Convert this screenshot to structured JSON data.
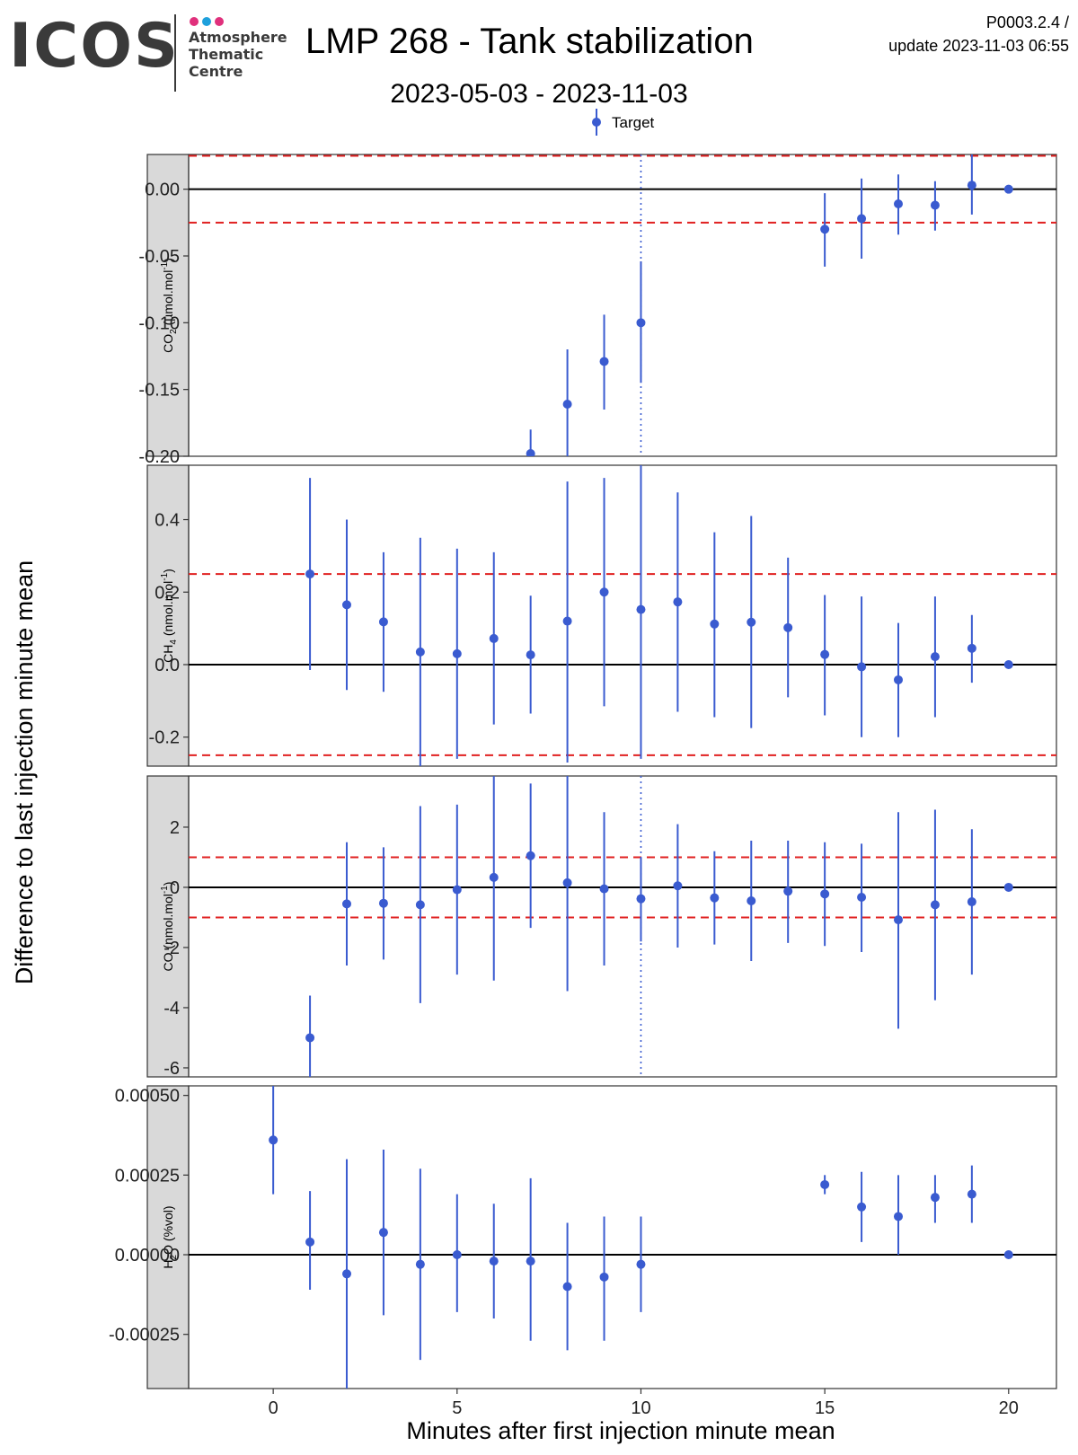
{
  "header": {
    "logo_text": "ICOS",
    "logo_sub": [
      "Atmosphere",
      "Thematic",
      "Centre"
    ],
    "title": "LMP 268 - Tank stabilization",
    "subtitle": "2023-05-03 - 2023-11-03",
    "code": "P0003.2.4 /",
    "update": "update  2023-11-03 06:55"
  },
  "colors": {
    "logo_dots": [
      "#e0307c",
      "#1ea0dc",
      "#e0307c"
    ],
    "point": "#3a5bd0",
    "reference": "#e02020",
    "strip": "#d9d9d9"
  },
  "chart_data": {
    "type": "scatter",
    "legend": {
      "label": "Target",
      "position": "top"
    },
    "xlabel": "Minutes after first injection minute mean",
    "ylabel": "Difference to last injection minute mean",
    "xlim": [
      -2.3,
      21.3
    ],
    "xticks": [
      0,
      5,
      10,
      15,
      20
    ],
    "xtick_labels": [
      "0",
      "5",
      "10",
      "15",
      "20"
    ],
    "vline_x": 10,
    "panels": [
      {
        "id": "co2",
        "strip_main": "CO",
        "strip_sub": "2",
        "strip_unit": " (µmol.mol",
        "strip_sup": "-1",
        "strip_end": ")",
        "ylim": [
          -0.2,
          0.026
        ],
        "yticks": [
          0,
          -0.05,
          -0.1,
          -0.15,
          -0.2
        ],
        "ytick_labels": [
          "0.00",
          "-0.05",
          "-0.10",
          "-0.15",
          "-0.20"
        ],
        "ref": 0.025,
        "vline": true,
        "points": [
          {
            "x": 7,
            "y": -0.198,
            "lo": -0.22,
            "hi": -0.18
          },
          {
            "x": 8,
            "y": -0.161,
            "lo": -0.205,
            "hi": -0.12
          },
          {
            "x": 9,
            "y": -0.129,
            "lo": -0.165,
            "hi": -0.094
          },
          {
            "x": 10,
            "y": -0.1,
            "lo": -0.145,
            "hi": -0.054
          },
          {
            "x": 15,
            "y": -0.03,
            "lo": -0.058,
            "hi": -0.003
          },
          {
            "x": 16,
            "y": -0.022,
            "lo": -0.052,
            "hi": 0.008
          },
          {
            "x": 17,
            "y": -0.011,
            "lo": -0.034,
            "hi": 0.011
          },
          {
            "x": 18,
            "y": -0.012,
            "lo": -0.031,
            "hi": 0.006
          },
          {
            "x": 19,
            "y": 0.003,
            "lo": -0.019,
            "hi": 0.026
          },
          {
            "x": 20,
            "y": 0.0,
            "lo": 0.0,
            "hi": 0.0
          }
        ]
      },
      {
        "id": "ch4",
        "strip_main": "CH",
        "strip_sub": "4",
        "strip_unit": " (nmol.mol",
        "strip_sup": "-1",
        "strip_end": ")",
        "ylim": [
          -0.28,
          0.55
        ],
        "yticks": [
          0.4,
          0.2,
          0,
          -0.2
        ],
        "ytick_labels": [
          "0.4",
          "0.2",
          "0.0",
          "-0.2"
        ],
        "ref": 0.25,
        "vline": false,
        "points": [
          {
            "x": 1,
            "y": 0.25,
            "lo": -0.015,
            "hi": 0.515
          },
          {
            "x": 2,
            "y": 0.165,
            "lo": -0.07,
            "hi": 0.4
          },
          {
            "x": 3,
            "y": 0.118,
            "lo": -0.075,
            "hi": 0.31
          },
          {
            "x": 4,
            "y": 0.035,
            "lo": -0.28,
            "hi": 0.35
          },
          {
            "x": 5,
            "y": 0.03,
            "lo": -0.26,
            "hi": 0.32
          },
          {
            "x": 6,
            "y": 0.072,
            "lo": -0.165,
            "hi": 0.31
          },
          {
            "x": 7,
            "y": 0.027,
            "lo": -0.135,
            "hi": 0.19
          },
          {
            "x": 8,
            "y": 0.12,
            "lo": -0.27,
            "hi": 0.505
          },
          {
            "x": 9,
            "y": 0.2,
            "lo": -0.115,
            "hi": 0.515
          },
          {
            "x": 10,
            "y": 0.152,
            "lo": -0.26,
            "hi": 0.56
          },
          {
            "x": 11,
            "y": 0.173,
            "lo": -0.13,
            "hi": 0.475
          },
          {
            "x": 12,
            "y": 0.112,
            "lo": -0.145,
            "hi": 0.365
          },
          {
            "x": 13,
            "y": 0.117,
            "lo": -0.175,
            "hi": 0.41
          },
          {
            "x": 14,
            "y": 0.102,
            "lo": -0.09,
            "hi": 0.295
          },
          {
            "x": 15,
            "y": 0.028,
            "lo": -0.14,
            "hi": 0.192
          },
          {
            "x": 16,
            "y": -0.006,
            "lo": -0.2,
            "hi": 0.188
          },
          {
            "x": 17,
            "y": -0.042,
            "lo": -0.2,
            "hi": 0.115
          },
          {
            "x": 18,
            "y": 0.022,
            "lo": -0.145,
            "hi": 0.188
          },
          {
            "x": 19,
            "y": 0.045,
            "lo": -0.05,
            "hi": 0.137
          },
          {
            "x": 20,
            "y": 0.0,
            "lo": 0.0,
            "hi": 0.0
          }
        ]
      },
      {
        "id": "co",
        "strip_main": "CO",
        "strip_sub": "",
        "strip_unit": " (nmol.mol",
        "strip_sup": "-1",
        "strip_end": ")",
        "ylim": [
          -6.3,
          3.7
        ],
        "yticks": [
          2,
          0,
          -2,
          -4,
          -6
        ],
        "ytick_labels": [
          "2",
          "0",
          "-2",
          "-4",
          "-6"
        ],
        "ref": 1,
        "vline": true,
        "points": [
          {
            "x": 1,
            "y": -5.0,
            "lo": -6.3,
            "hi": -3.6
          },
          {
            "x": 2,
            "y": -0.55,
            "lo": -2.6,
            "hi": 1.5
          },
          {
            "x": 3,
            "y": -0.53,
            "lo": -2.4,
            "hi": 1.33
          },
          {
            "x": 4,
            "y": -0.58,
            "lo": -3.85,
            "hi": 2.7
          },
          {
            "x": 5,
            "y": -0.08,
            "lo": -2.9,
            "hi": 2.75
          },
          {
            "x": 6,
            "y": 0.33,
            "lo": -3.1,
            "hi": 3.7
          },
          {
            "x": 7,
            "y": 1.05,
            "lo": -1.35,
            "hi": 3.45
          },
          {
            "x": 8,
            "y": 0.15,
            "lo": -3.45,
            "hi": 3.7
          },
          {
            "x": 9,
            "y": -0.05,
            "lo": -2.6,
            "hi": 2.5
          },
          {
            "x": 10,
            "y": -0.38,
            "lo": -1.8,
            "hi": 1.0
          },
          {
            "x": 11,
            "y": 0.05,
            "lo": -2.0,
            "hi": 2.1
          },
          {
            "x": 12,
            "y": -0.35,
            "lo": -1.9,
            "hi": 1.2
          },
          {
            "x": 13,
            "y": -0.45,
            "lo": -2.45,
            "hi": 1.55
          },
          {
            "x": 14,
            "y": -0.13,
            "lo": -1.85,
            "hi": 1.55
          },
          {
            "x": 15,
            "y": -0.22,
            "lo": -1.95,
            "hi": 1.5
          },
          {
            "x": 16,
            "y": -0.33,
            "lo": -2.15,
            "hi": 1.45
          },
          {
            "x": 17,
            "y": -1.08,
            "lo": -4.7,
            "hi": 2.5
          },
          {
            "x": 18,
            "y": -0.58,
            "lo": -3.75,
            "hi": 2.58
          },
          {
            "x": 19,
            "y": -0.48,
            "lo": -2.9,
            "hi": 1.93
          },
          {
            "x": 20,
            "y": 0.0,
            "lo": 0.0,
            "hi": 0.0
          }
        ]
      },
      {
        "id": "h2o",
        "strip_main": "H",
        "strip_sub": "2",
        "strip_unit": "O (%vol)",
        "strip_sup": "",
        "strip_end": "",
        "ylim": [
          -0.00042,
          0.00053
        ],
        "yticks": [
          0.0005,
          0.00025,
          0,
          -0.00025
        ],
        "ytick_labels": [
          "0.00050",
          "0.00025",
          "0.00000",
          "-0.00025"
        ],
        "ref": null,
        "vline": false,
        "points": [
          {
            "x": 0,
            "y": 0.00036,
            "lo": 0.00019,
            "hi": 0.00053
          },
          {
            "x": 1,
            "y": 4e-05,
            "lo": -0.00011,
            "hi": 0.0002
          },
          {
            "x": 2,
            "y": -6e-05,
            "lo": -0.00042,
            "hi": 0.0003
          },
          {
            "x": 3,
            "y": 7e-05,
            "lo": -0.00019,
            "hi": 0.00033
          },
          {
            "x": 4,
            "y": -3e-05,
            "lo": -0.00033,
            "hi": 0.00027
          },
          {
            "x": 5,
            "y": 0.0,
            "lo": -0.00018,
            "hi": 0.00019
          },
          {
            "x": 6,
            "y": -2e-05,
            "lo": -0.0002,
            "hi": 0.00016
          },
          {
            "x": 7,
            "y": -2e-05,
            "lo": -0.00027,
            "hi": 0.00024
          },
          {
            "x": 8,
            "y": -0.0001,
            "lo": -0.0003,
            "hi": 0.0001
          },
          {
            "x": 9,
            "y": -7e-05,
            "lo": -0.00027,
            "hi": 0.00012
          },
          {
            "x": 10,
            "y": -3e-05,
            "lo": -0.00018,
            "hi": 0.00012
          },
          {
            "x": 15,
            "y": 0.00022,
            "lo": 0.00019,
            "hi": 0.00025
          },
          {
            "x": 16,
            "y": 0.00015,
            "lo": 4e-05,
            "hi": 0.00026
          },
          {
            "x": 17,
            "y": 0.00012,
            "lo": 0.0,
            "hi": 0.00025
          },
          {
            "x": 18,
            "y": 0.00018,
            "lo": 0.0001,
            "hi": 0.00025
          },
          {
            "x": 19,
            "y": 0.00019,
            "lo": 0.0001,
            "hi": 0.00028
          },
          {
            "x": 20,
            "y": 0.0,
            "lo": 0.0,
            "hi": 0.0
          }
        ]
      }
    ]
  }
}
